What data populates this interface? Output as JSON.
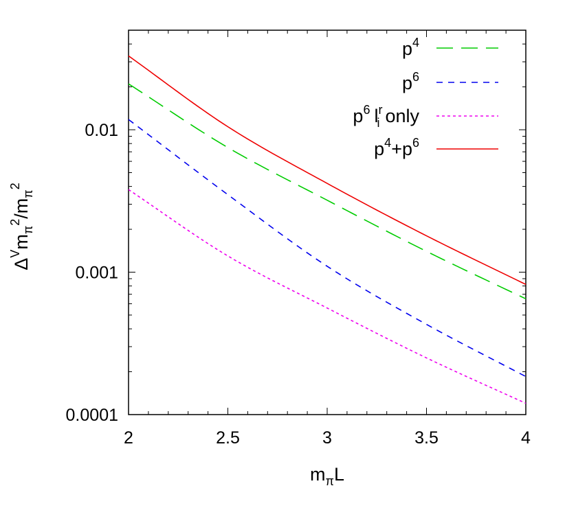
{
  "chart_data": {
    "type": "line",
    "xlabel": {
      "main": "m",
      "sub": "π",
      "rest": "L"
    },
    "ylabel": {
      "delta": "Δ",
      "sup": "V",
      "m1": "m",
      "sub1": "π",
      "exp1": "2",
      "slash": "/m",
      "sub2": "π",
      "exp2": "2"
    },
    "xlim": [
      2,
      4
    ],
    "ylim": [
      0.0001,
      0.05
    ],
    "yscale": "log",
    "grid": false,
    "legend_position": "top-right",
    "x_ticks": [
      {
        "value": 2,
        "label": "2"
      },
      {
        "value": 2.5,
        "label": "2.5"
      },
      {
        "value": 3,
        "label": "3"
      },
      {
        "value": 3.5,
        "label": "3.5"
      },
      {
        "value": 4,
        "label": "4"
      }
    ],
    "y_ticks": [
      {
        "value": 0.0001,
        "label": "0.0001"
      },
      {
        "value": 0.001,
        "label": "0.001"
      },
      {
        "value": 0.01,
        "label": "0.01"
      }
    ],
    "series": [
      {
        "legend": {
          "base": "p",
          "sup": "4"
        },
        "color": "#00cc00",
        "dash": "24,12",
        "x": [
          2,
          2.5,
          3,
          3.5,
          4
        ],
        "y": [
          0.021,
          0.0075,
          0.0032,
          0.0014,
          0.00065
        ]
      },
      {
        "legend": {
          "base": "p",
          "sup": "6"
        },
        "color": "#0000ee",
        "dash": "9,8",
        "x": [
          2,
          2.5,
          3,
          3.5,
          4
        ],
        "y": [
          0.0118,
          0.0035,
          0.0011,
          0.00043,
          0.000185
        ]
      },
      {
        "legend": {
          "base": "p",
          "sup": "6",
          "extra_base": "l",
          "extra_sup": "r",
          "extra_sub": "i",
          "extra_text": "only"
        },
        "color": "#ee00ee",
        "dash": "4,4",
        "x": [
          2,
          2.5,
          3,
          3.5,
          4
        ],
        "y": [
          0.0038,
          0.0013,
          0.00056,
          0.00025,
          0.00012
        ]
      },
      {
        "legend": {
          "base": "p",
          "sup": "4",
          "plus": "+p",
          "sup2": "6"
        },
        "color": "#ee0000",
        "dash": "",
        "x": [
          2,
          2.5,
          3,
          3.5,
          4
        ],
        "y": [
          0.033,
          0.0105,
          0.0042,
          0.0018,
          0.00082
        ]
      }
    ]
  }
}
